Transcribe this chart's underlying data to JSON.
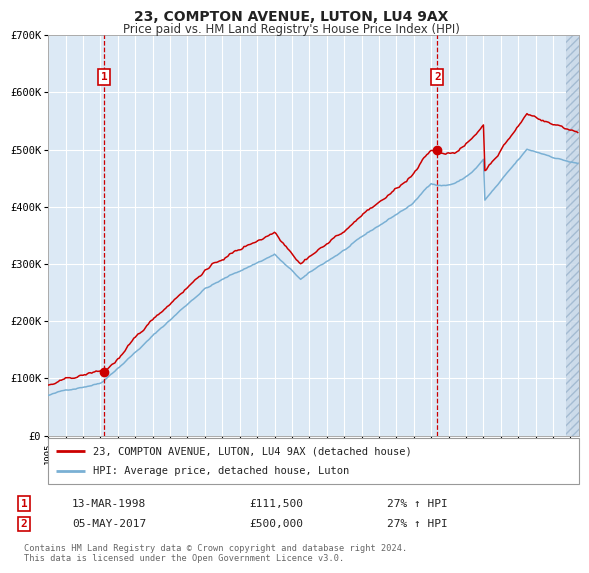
{
  "title": "23, COMPTON AVENUE, LUTON, LU4 9AX",
  "subtitle": "Price paid vs. HM Land Registry's House Price Index (HPI)",
  "xlabel": "",
  "ylabel": "",
  "ylim": [
    0,
    700000
  ],
  "yticks": [
    0,
    100000,
    200000,
    300000,
    400000,
    500000,
    600000,
    700000
  ],
  "ytick_labels": [
    "£0",
    "£100K",
    "£200K",
    "£300K",
    "£400K",
    "£500K",
    "£600K",
    "£700K"
  ],
  "background_color": "#dce9f5",
  "grid_color": "#ffffff",
  "line1_color": "#cc0000",
  "line2_color": "#7ab0d4",
  "marker_color": "#cc0000",
  "vline_color": "#cc0000",
  "anno1_x": 1998.2,
  "anno1_y": 111500,
  "anno1_label": "1",
  "anno2_x": 2017.35,
  "anno2_y": 500000,
  "anno2_label": "2",
  "sale1_date": "13-MAR-1998",
  "sale1_price": "£111,500",
  "sale1_hpi": "27% ↑ HPI",
  "sale2_date": "05-MAY-2017",
  "sale2_price": "£500,000",
  "sale2_hpi": "27% ↑ HPI",
  "legend1": "23, COMPTON AVENUE, LUTON, LU4 9AX (detached house)",
  "legend2": "HPI: Average price, detached house, Luton",
  "footer": "Contains HM Land Registry data © Crown copyright and database right 2024.\nThis data is licensed under the Open Government Licence v3.0.",
  "xmin": 1995.0,
  "xmax": 2025.5,
  "hatch_start": 2024.75
}
